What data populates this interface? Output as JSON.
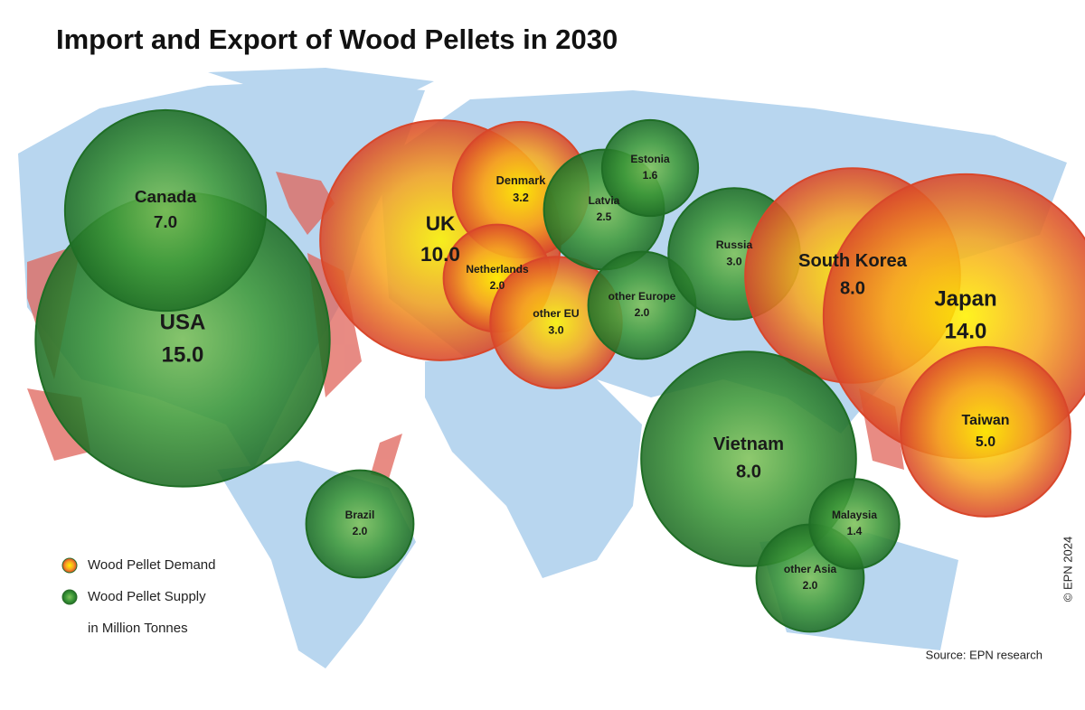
{
  "title": "Import and Export of Wood Pellets in 2030",
  "bubbles": [
    {
      "name": "USA",
      "value": 15,
      "value_label": "15.0",
      "kind": "supply"
    },
    {
      "name": "Canada",
      "value": 7,
      "value_label": "7.0",
      "kind": "supply"
    },
    {
      "name": "Brazil",
      "value": 2,
      "value_label": "2.0",
      "kind": "supply"
    },
    {
      "name": "UK",
      "value": 10,
      "value_label": "10.0",
      "kind": "demand"
    },
    {
      "name": "Denmark",
      "value": 3.2,
      "value_label": "3.2",
      "kind": "demand"
    },
    {
      "name": "Netherlands",
      "value": 2,
      "value_label": "2.0",
      "kind": "demand"
    },
    {
      "name": "other EU",
      "value": 3,
      "value_label": "3.0",
      "kind": "demand"
    },
    {
      "name": "Latvia",
      "value": 2.5,
      "value_label": "2.5",
      "kind": "supply"
    },
    {
      "name": "Estonia",
      "value": 1.6,
      "value_label": "1.6",
      "kind": "supply"
    },
    {
      "name": "other Europe",
      "value": 2,
      "value_label": "2.0",
      "kind": "supply"
    },
    {
      "name": "Russia",
      "value": 3,
      "value_label": "3.0",
      "kind": "supply"
    },
    {
      "name": "South Korea",
      "value": 8,
      "value_label": "8.0",
      "kind": "demand"
    },
    {
      "name": "Japan",
      "value": 14,
      "value_label": "14.0",
      "kind": "demand"
    },
    {
      "name": "Taiwan",
      "value": 5,
      "value_label": "5.0",
      "kind": "demand"
    },
    {
      "name": "Vietnam",
      "value": 8,
      "value_label": "8.0",
      "kind": "supply"
    },
    {
      "name": "other Asia",
      "value": 2,
      "value_label": "2.0",
      "kind": "supply"
    },
    {
      "name": "Malaysia",
      "value": 1.4,
      "value_label": "1.4",
      "kind": "supply"
    }
  ],
  "colors": {
    "demand": [
      "#fff200",
      "#f6a623",
      "#d9472a"
    ],
    "supply": [
      "#7fc25a",
      "#3f9a3a",
      "#1f6e25"
    ]
  },
  "legend": {
    "demand": "Wood Pellet Demand",
    "supply": "Wood Pellet Supply",
    "unit": "in Million Tonnes"
  },
  "source": "Source: EPN research",
  "copyright": "© EPN 2024"
}
